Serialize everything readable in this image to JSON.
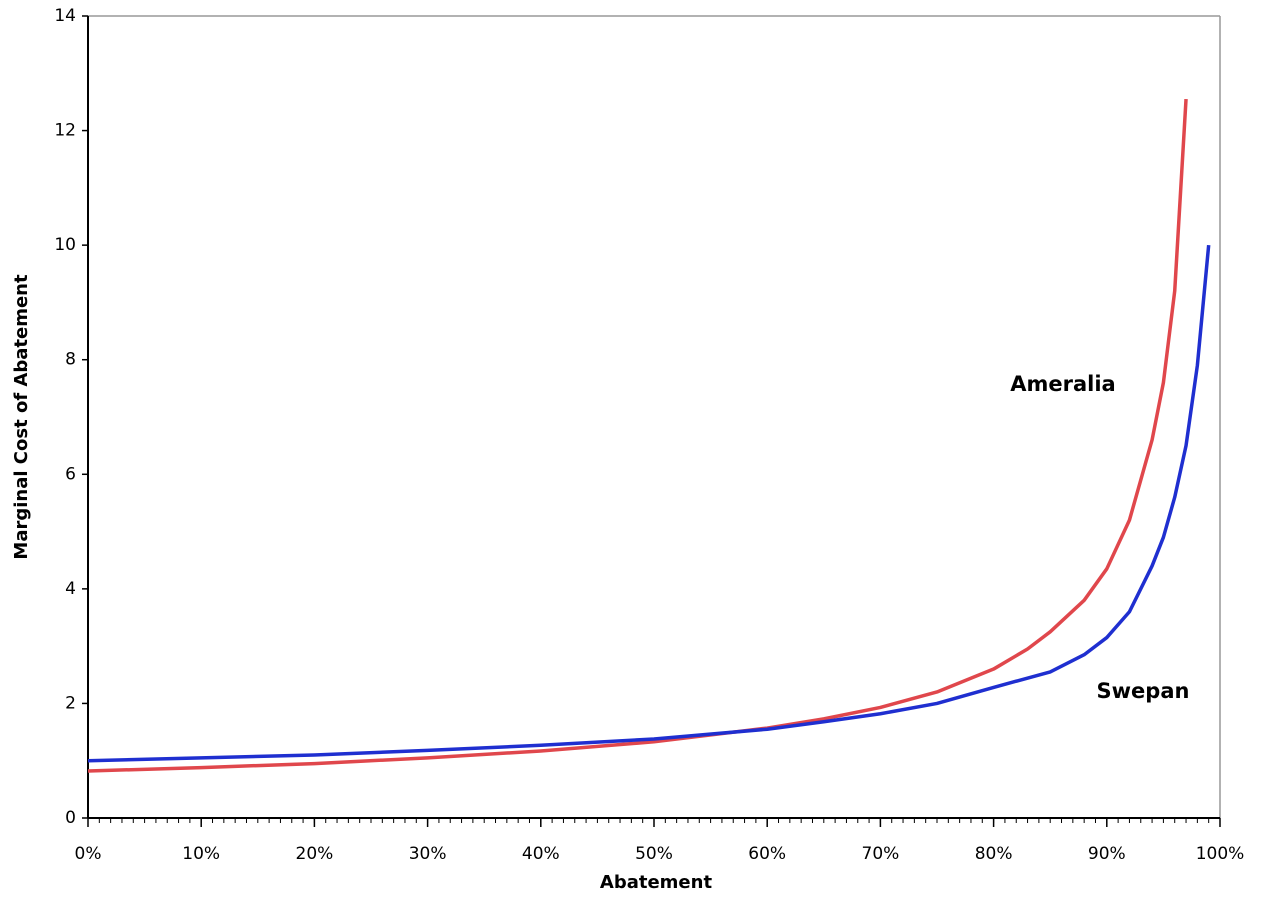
{
  "chart_data": {
    "type": "line",
    "x_label": "Abatement",
    "y_label": "Marginal Cost of Abatement",
    "xlim": [
      0,
      100
    ],
    "ylim": [
      0,
      14
    ],
    "xticks": [
      {
        "value": 0,
        "label": "0%"
      },
      {
        "value": 10,
        "label": "10%"
      },
      {
        "value": 20,
        "label": "20%"
      },
      {
        "value": 30,
        "label": "30%"
      },
      {
        "value": 40,
        "label": "40%"
      },
      {
        "value": 50,
        "label": "50%"
      },
      {
        "value": 60,
        "label": "60%"
      },
      {
        "value": 70,
        "label": "70%"
      },
      {
        "value": 80,
        "label": "80%"
      },
      {
        "value": 90,
        "label": "90%"
      },
      {
        "value": 100,
        "label": "100%"
      }
    ],
    "yticks": [
      0,
      2,
      4,
      6,
      8,
      10,
      12,
      14
    ],
    "series": [
      {
        "name": "Ameralia",
        "color": "#e0474c",
        "x": [
          0,
          10,
          20,
          30,
          40,
          50,
          60,
          65,
          70,
          75,
          80,
          83,
          85,
          88,
          90,
          92,
          94,
          95,
          96,
          97
        ],
        "values": [
          0.82,
          0.88,
          0.95,
          1.05,
          1.17,
          1.33,
          1.57,
          1.73,
          1.93,
          2.2,
          2.6,
          2.95,
          3.25,
          3.8,
          4.35,
          5.2,
          6.6,
          7.6,
          9.2,
          12.55
        ]
      },
      {
        "name": "Swepan",
        "color": "#1f2fd0",
        "x": [
          0,
          10,
          20,
          30,
          40,
          50,
          60,
          65,
          70,
          75,
          80,
          85,
          88,
          90,
          92,
          94,
          95,
          96,
          97,
          98,
          99
        ],
        "values": [
          1.0,
          1.05,
          1.1,
          1.18,
          1.27,
          1.38,
          1.55,
          1.68,
          1.82,
          2.0,
          2.28,
          2.55,
          2.85,
          3.15,
          3.6,
          4.4,
          4.9,
          5.6,
          6.5,
          7.9,
          10.0
        ]
      }
    ]
  }
}
